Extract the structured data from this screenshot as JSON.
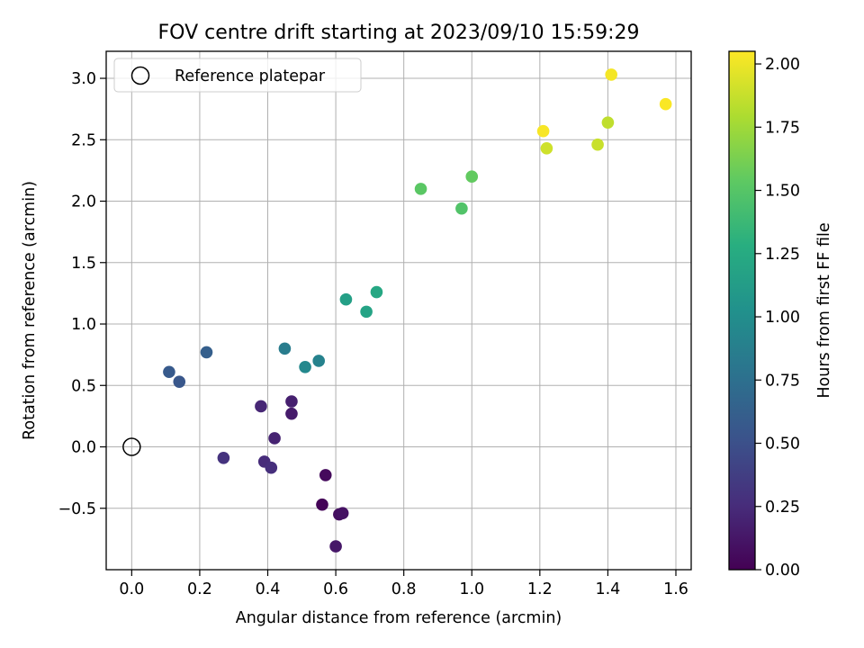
{
  "chart_data": {
    "type": "scatter",
    "title": "FOV centre drift starting at 2023/09/10 15:59:29",
    "xlabel": "Angular distance from reference (arcmin)",
    "ylabel": "Rotation from reference (arcmin)",
    "xlim": [
      -0.075,
      1.645
    ],
    "ylim": [
      -1.0,
      3.22
    ],
    "x_ticks": [
      0.0,
      0.2,
      0.4,
      0.6,
      0.8,
      1.0,
      1.2,
      1.4,
      1.6
    ],
    "x_tick_labels": [
      "0.0",
      "0.2",
      "0.4",
      "0.6",
      "0.8",
      "1.0",
      "1.2",
      "1.4",
      "1.6"
    ],
    "y_ticks": [
      -0.5,
      0.0,
      0.5,
      1.0,
      1.5,
      2.0,
      2.5,
      3.0
    ],
    "y_tick_labels": [
      "−0.5",
      "0.0",
      "0.5",
      "1.0",
      "1.5",
      "2.0",
      "2.5",
      "3.0"
    ],
    "grid": true,
    "legend_position": "top-left",
    "legend": [
      {
        "label": "Reference platepar",
        "marker": "hollow-circle"
      }
    ],
    "reference_point": {
      "x": 0.0,
      "y": 0.0
    },
    "colorbar": {
      "label": "Hours from first FF file",
      "colormap": "viridis",
      "range": [
        0.0,
        2.05
      ],
      "ticks": [
        0.0,
        0.25,
        0.5,
        0.75,
        1.0,
        1.25,
        1.5,
        1.75,
        2.0
      ],
      "tick_labels": [
        "0.00",
        "0.25",
        "0.50",
        "0.75",
        "1.00",
        "1.25",
        "1.50",
        "1.75",
        "2.00"
      ]
    },
    "points": [
      {
        "x": 0.56,
        "y": -0.47,
        "c": 0.02
      },
      {
        "x": 0.57,
        "y": -0.23,
        "c": 0.05
      },
      {
        "x": 0.61,
        "y": -0.55,
        "c": 0.08
      },
      {
        "x": 0.62,
        "y": -0.54,
        "c": 0.1
      },
      {
        "x": 0.6,
        "y": -0.81,
        "c": 0.13
      },
      {
        "x": 0.47,
        "y": 0.27,
        "c": 0.15
      },
      {
        "x": 0.47,
        "y": 0.37,
        "c": 0.18
      },
      {
        "x": 0.42,
        "y": 0.07,
        "c": 0.2
      },
      {
        "x": 0.38,
        "y": 0.33,
        "c": 0.22
      },
      {
        "x": 0.39,
        "y": -0.12,
        "c": 0.25
      },
      {
        "x": 0.41,
        "y": -0.17,
        "c": 0.27
      },
      {
        "x": 0.27,
        "y": -0.09,
        "c": 0.3
      },
      {
        "x": 0.14,
        "y": 0.53,
        "c": 0.55
      },
      {
        "x": 0.11,
        "y": 0.61,
        "c": 0.58
      },
      {
        "x": 0.22,
        "y": 0.77,
        "c": 0.62
      },
      {
        "x": 0.45,
        "y": 0.8,
        "c": 0.85
      },
      {
        "x": 0.55,
        "y": 0.7,
        "c": 0.9
      },
      {
        "x": 0.51,
        "y": 0.65,
        "c": 0.95
      },
      {
        "x": 0.63,
        "y": 1.2,
        "c": 1.15
      },
      {
        "x": 0.69,
        "y": 1.1,
        "c": 1.18
      },
      {
        "x": 0.72,
        "y": 1.26,
        "c": 1.22
      },
      {
        "x": 0.85,
        "y": 2.1,
        "c": 1.52
      },
      {
        "x": 0.97,
        "y": 1.94,
        "c": 1.48
      },
      {
        "x": 1.0,
        "y": 2.2,
        "c": 1.55
      },
      {
        "x": 1.22,
        "y": 2.43,
        "c": 1.9
      },
      {
        "x": 1.37,
        "y": 2.46,
        "c": 1.88
      },
      {
        "x": 1.4,
        "y": 2.64,
        "c": 1.85
      },
      {
        "x": 1.21,
        "y": 2.57,
        "c": 2.03
      },
      {
        "x": 1.41,
        "y": 3.03,
        "c": 2.02
      },
      {
        "x": 1.57,
        "y": 2.79,
        "c": 2.04
      }
    ]
  }
}
